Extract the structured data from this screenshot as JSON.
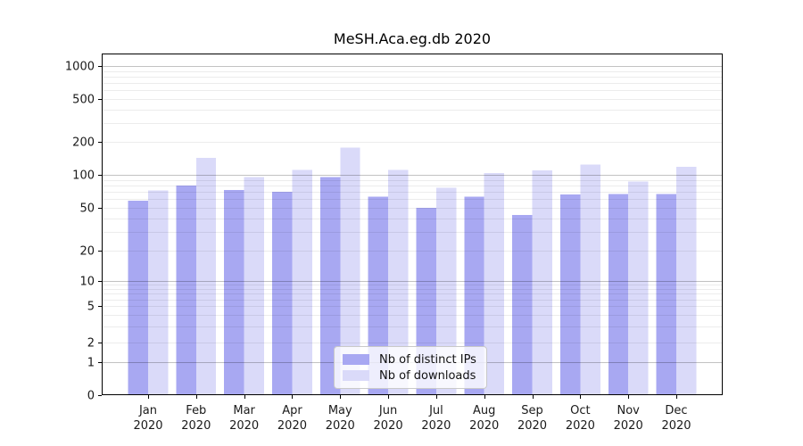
{
  "chart_data": {
    "type": "bar",
    "title": "MeSH.Aca.eg.db 2020",
    "categories": [
      "Jan",
      "Feb",
      "Mar",
      "Apr",
      "May",
      "Jun",
      "Jul",
      "Aug",
      "Sep",
      "Oct",
      "Nov",
      "Dec"
    ],
    "x_tick_line2": "2020",
    "series": [
      {
        "name": "Nb of distinct IPs",
        "color": "#a8a8f2",
        "values": [
          58,
          80,
          73,
          70,
          95,
          63,
          50,
          63,
          43,
          66,
          67,
          67
        ]
      },
      {
        "name": "Nb of downloads",
        "color": "#dadaf9",
        "values": [
          72,
          143,
          95,
          111,
          177,
          111,
          76,
          104,
          110,
          124,
          87,
          118
        ]
      }
    ],
    "y_axis": {
      "scale": "symlog",
      "ticks": [
        0,
        1,
        2,
        5,
        10,
        20,
        50,
        100,
        200,
        500,
        1000
      ],
      "range": [
        0,
        1200
      ]
    },
    "legend": {
      "position": "lower center",
      "entries": [
        "Nb of distinct IPs",
        "Nb of downloads"
      ]
    },
    "grid": true,
    "xlabel": "",
    "ylabel": ""
  }
}
